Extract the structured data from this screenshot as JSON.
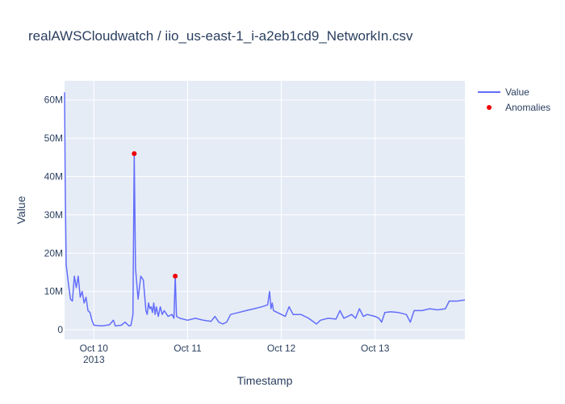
{
  "chart_data": {
    "type": "line",
    "title": "realAWSCloudwatch / iio_us-east-1_i-a2eb1cd9_NetworkIn.csv",
    "xlabel": "Timestamp",
    "ylabel": "Value",
    "x_tick_labels": [
      {
        "date": "2013-10-10 00:00",
        "label": "Oct 10",
        "sublabel": "2013"
      },
      {
        "date": "2013-10-11 00:00",
        "label": "Oct 11",
        "sublabel": ""
      },
      {
        "date": "2013-10-12 00:00",
        "label": "Oct 12",
        "sublabel": ""
      },
      {
        "date": "2013-10-13 00:00",
        "label": "Oct 13",
        "sublabel": ""
      }
    ],
    "y_ticks": [
      0,
      10000000,
      20000000,
      30000000,
      40000000,
      50000000,
      60000000
    ],
    "y_tick_labels": [
      "0",
      "10M",
      "20M",
      "30M",
      "40M",
      "50M",
      "60M"
    ],
    "xlim": [
      "2013-10-09 16:30",
      "2013-10-13 23:00"
    ],
    "ylim": [
      -2500000,
      65000000
    ],
    "grid": true,
    "legend_placement": "top-right",
    "series": [
      {
        "name": "Value",
        "color": "#636efa",
        "mode": "lines",
        "points": [
          [
            "2013-10-09 16:30",
            62000000
          ],
          [
            "2013-10-09 16:40",
            38000000
          ],
          [
            "2013-10-09 16:55",
            17000000
          ],
          [
            "2013-10-09 17:30",
            12000000
          ],
          [
            "2013-10-09 18:00",
            8000000
          ],
          [
            "2013-10-09 18:30",
            7500000
          ],
          [
            "2013-10-09 19:00",
            14000000
          ],
          [
            "2013-10-09 19:30",
            11000000
          ],
          [
            "2013-10-09 20:00",
            14000000
          ],
          [
            "2013-10-09 20:30",
            8500000
          ],
          [
            "2013-10-09 21:00",
            10000000
          ],
          [
            "2013-10-09 21:30",
            7000000
          ],
          [
            "2013-10-09 22:00",
            8500000
          ],
          [
            "2013-10-09 22:30",
            5000000
          ],
          [
            "2013-10-09 23:00",
            4500000
          ],
          [
            "2013-10-09 23:30",
            2500000
          ],
          [
            "2013-10-10 00:00",
            1200000
          ],
          [
            "2013-10-10 02:00",
            1000000
          ],
          [
            "2013-10-10 04:00",
            1300000
          ],
          [
            "2013-10-10 05:00",
            2500000
          ],
          [
            "2013-10-10 05:30",
            1000000
          ],
          [
            "2013-10-10 07:00",
            1200000
          ],
          [
            "2013-10-10 08:00",
            2000000
          ],
          [
            "2013-10-10 09:00",
            1000000
          ],
          [
            "2013-10-10 09:30",
            1200000
          ],
          [
            "2013-10-10 10:00",
            4000000
          ],
          [
            "2013-10-10 10:20",
            46000000
          ],
          [
            "2013-10-10 10:40",
            16000000
          ],
          [
            "2013-10-10 11:20",
            8000000
          ],
          [
            "2013-10-10 12:00",
            14000000
          ],
          [
            "2013-10-10 12:40",
            13000000
          ],
          [
            "2013-10-10 13:00",
            9000000
          ],
          [
            "2013-10-10 13:20",
            5000000
          ],
          [
            "2013-10-10 13:40",
            4000000
          ],
          [
            "2013-10-10 14:00",
            7000000
          ],
          [
            "2013-10-10 14:20",
            5500000
          ],
          [
            "2013-10-10 14:40",
            6000000
          ],
          [
            "2013-10-10 15:00",
            4500000
          ],
          [
            "2013-10-10 15:20",
            7000000
          ],
          [
            "2013-10-10 15:40",
            4000000
          ],
          [
            "2013-10-10 16:00",
            6000000
          ],
          [
            "2013-10-10 16:30",
            3500000
          ],
          [
            "2013-10-10 17:00",
            6000000
          ],
          [
            "2013-10-10 17:30",
            4000000
          ],
          [
            "2013-10-10 18:00",
            5000000
          ],
          [
            "2013-10-10 19:00",
            3500000
          ],
          [
            "2013-10-10 20:00",
            4000000
          ],
          [
            "2013-10-10 20:30",
            3000000
          ],
          [
            "2013-10-10 20:50",
            14000000
          ],
          [
            "2013-10-10 21:10",
            3500000
          ],
          [
            "2013-10-10 22:00",
            3000000
          ],
          [
            "2013-10-11 00:00",
            2500000
          ],
          [
            "2013-10-11 02:00",
            3000000
          ],
          [
            "2013-10-11 04:00",
            2500000
          ],
          [
            "2013-10-11 06:00",
            2200000
          ],
          [
            "2013-10-11 07:00",
            3500000
          ],
          [
            "2013-10-11 08:00",
            2000000
          ],
          [
            "2013-10-11 09:00",
            1500000
          ],
          [
            "2013-10-11 10:00",
            2000000
          ],
          [
            "2013-10-11 11:00",
            4000000
          ],
          [
            "2013-10-11 13:00",
            4500000
          ],
          [
            "2013-10-11 15:00",
            5000000
          ],
          [
            "2013-10-11 17:00",
            5500000
          ],
          [
            "2013-10-11 19:00",
            6000000
          ],
          [
            "2013-10-11 20:30",
            6500000
          ],
          [
            "2013-10-11 21:00",
            10000000
          ],
          [
            "2013-10-11 21:20",
            5500000
          ],
          [
            "2013-10-11 21:40",
            7000000
          ],
          [
            "2013-10-11 22:00",
            5000000
          ],
          [
            "2013-10-11 23:00",
            4500000
          ],
          [
            "2013-10-12 00:00",
            4000000
          ],
          [
            "2013-10-12 01:00",
            3500000
          ],
          [
            "2013-10-12 02:00",
            6000000
          ],
          [
            "2013-10-12 03:00",
            4000000
          ],
          [
            "2013-10-12 05:00",
            4000000
          ],
          [
            "2013-10-12 07:00",
            3000000
          ],
          [
            "2013-10-12 09:00",
            1500000
          ],
          [
            "2013-10-12 10:00",
            2500000
          ],
          [
            "2013-10-12 12:00",
            3000000
          ],
          [
            "2013-10-12 14:00",
            2800000
          ],
          [
            "2013-10-12 15:00",
            5000000
          ],
          [
            "2013-10-12 16:00",
            3000000
          ],
          [
            "2013-10-12 18:00",
            4000000
          ],
          [
            "2013-10-12 19:00",
            3000000
          ],
          [
            "2013-10-12 20:00",
            5500000
          ],
          [
            "2013-10-12 21:00",
            3500000
          ],
          [
            "2013-10-12 22:00",
            4000000
          ],
          [
            "2013-10-13 00:00",
            3500000
          ],
          [
            "2013-10-13 01:00",
            3000000
          ],
          [
            "2013-10-13 01:40",
            2000000
          ],
          [
            "2013-10-13 02:30",
            4500000
          ],
          [
            "2013-10-13 04:00",
            4700000
          ],
          [
            "2013-10-13 06:00",
            4500000
          ],
          [
            "2013-10-13 08:00",
            4000000
          ],
          [
            "2013-10-13 09:00",
            2000000
          ],
          [
            "2013-10-13 10:00",
            5000000
          ],
          [
            "2013-10-13 12:00",
            5000000
          ],
          [
            "2013-10-13 14:00",
            5500000
          ],
          [
            "2013-10-13 16:00",
            5200000
          ],
          [
            "2013-10-13 18:00",
            5500000
          ],
          [
            "2013-10-13 19:00",
            7500000
          ],
          [
            "2013-10-13 21:00",
            7500000
          ],
          [
            "2013-10-13 23:00",
            7800000
          ]
        ]
      },
      {
        "name": "Anomalies",
        "color": "#ee0000",
        "mode": "markers",
        "points": [
          [
            "2013-10-10 10:20",
            46000000
          ],
          [
            "2013-10-10 20:50",
            14000000
          ]
        ]
      }
    ]
  }
}
